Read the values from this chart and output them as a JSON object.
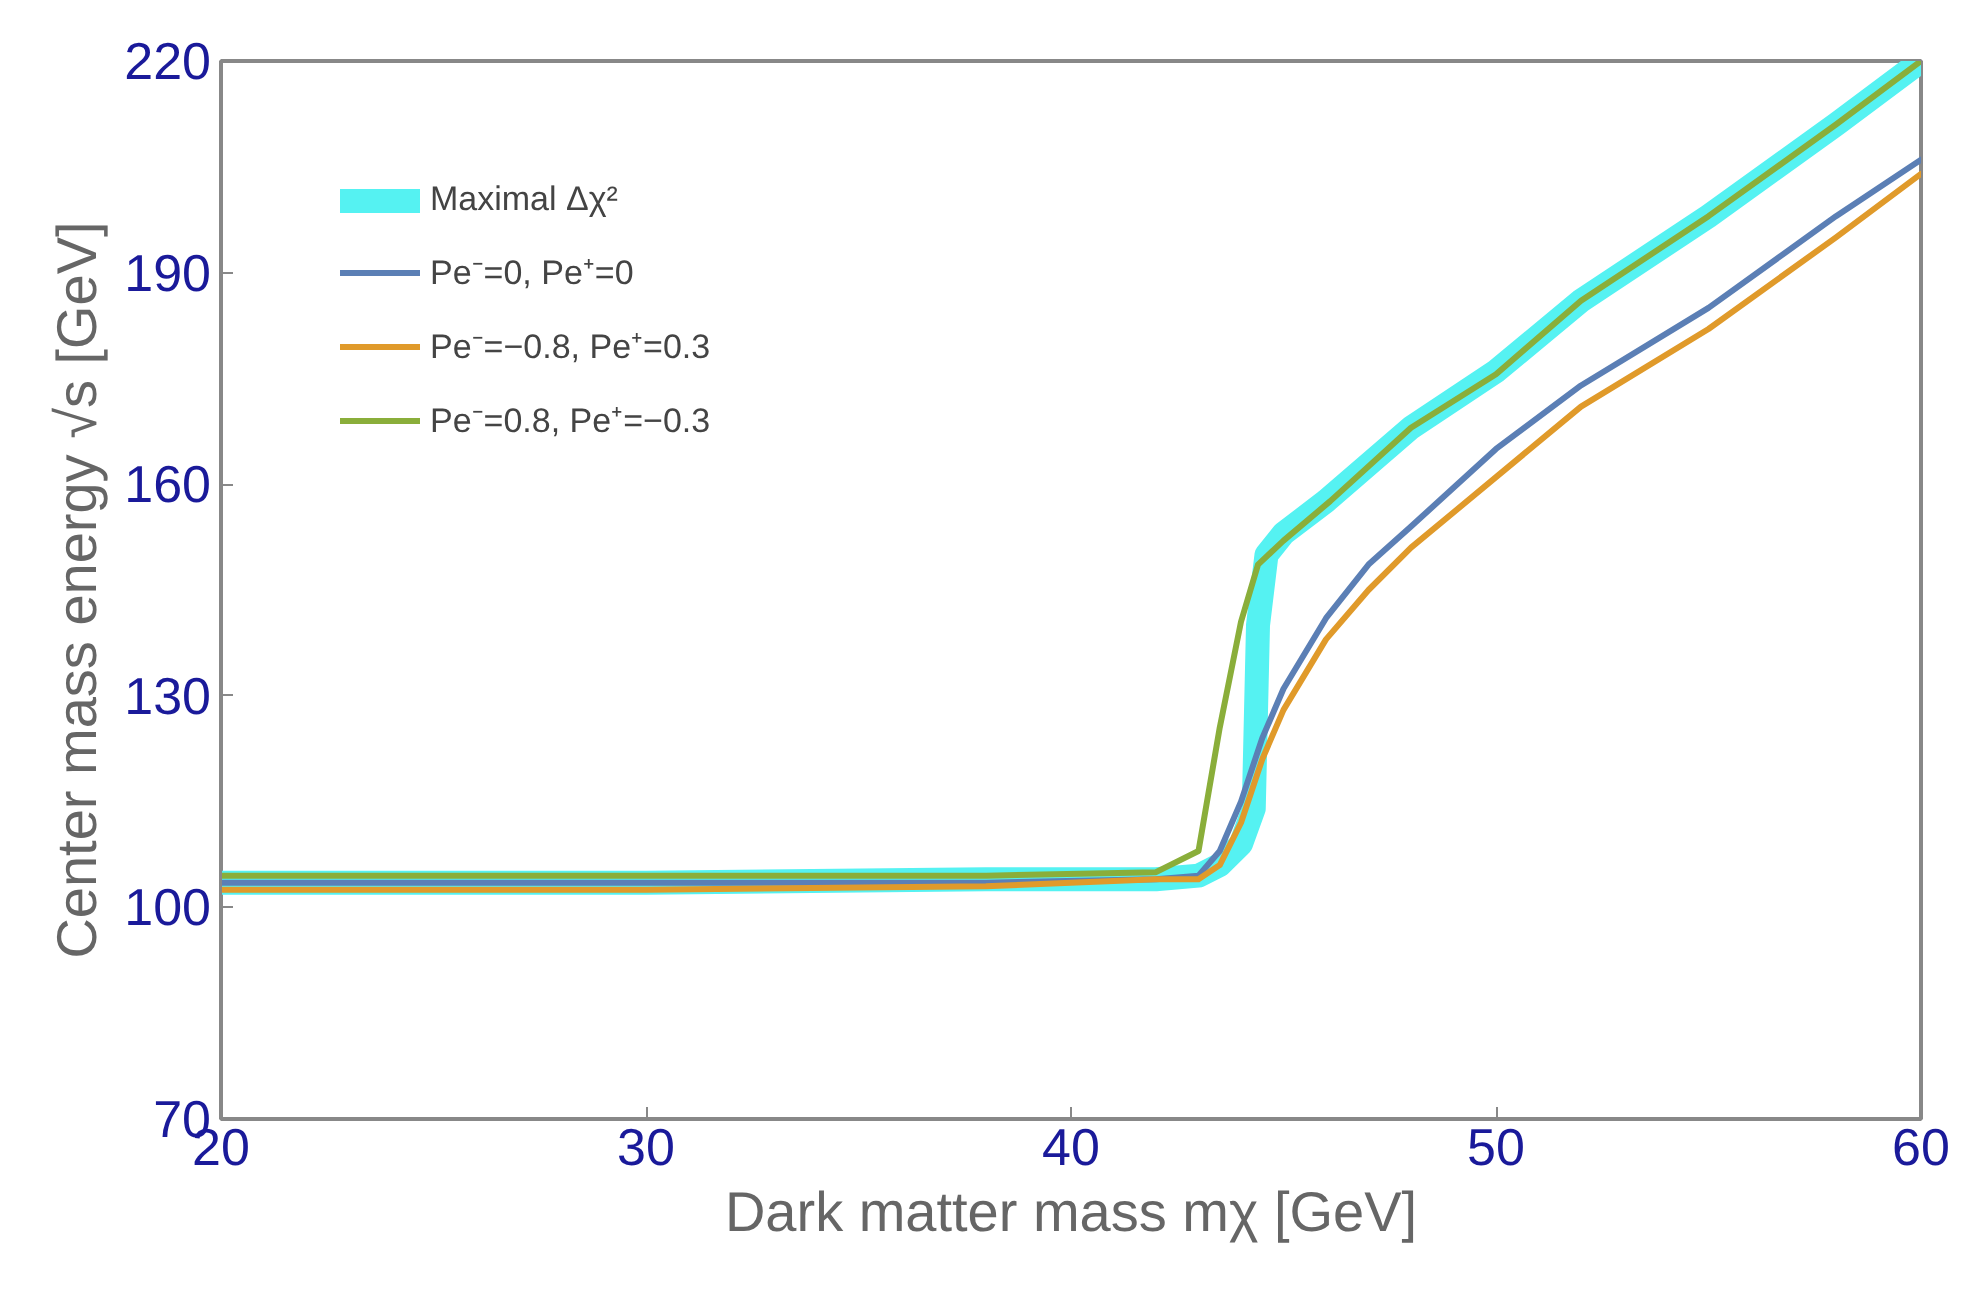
{
  "chart_data": {
    "type": "line",
    "xlabel": "Dark matter mass mχ [GeV]",
    "ylabel": "Center mass energy √s [GeV]",
    "xlim": [
      20,
      60
    ],
    "ylim": [
      70,
      220
    ],
    "xticks": [
      20,
      30,
      40,
      50,
      60
    ],
    "yticks": [
      70,
      100,
      130,
      160,
      190,
      220
    ],
    "grid": false,
    "legend": "top left",
    "line_style": "solid",
    "marker": "none",
    "series": [
      {
        "name": "Maximal Δχ²",
        "color": "#55f2f2",
        "x": [
          20,
          30,
          38,
          42,
          43,
          43.5,
          44,
          44.3,
          44.4,
          44.6,
          45,
          46,
          48,
          50,
          52,
          55,
          58,
          60
        ],
        "values": [
          103.5,
          103.5,
          104,
          104,
          104.5,
          106,
          109,
          114,
          140,
          150,
          153,
          157.6,
          168,
          176,
          186,
          198,
          211,
          220
        ]
      },
      {
        "name": "Pe⁻=0, Pe⁺=0",
        "color": "#5b7fb5",
        "x": [
          20,
          30,
          38,
          42,
          43,
          43.5,
          44,
          44.5,
          45,
          46,
          47,
          48,
          50,
          52,
          55,
          58,
          60
        ],
        "values": [
          103.5,
          103.5,
          103.5,
          104,
          104.5,
          108,
          115,
          124,
          131,
          141,
          148.6,
          154,
          165,
          174,
          185,
          198,
          206
        ]
      },
      {
        "name": "Pe⁻=−0.8, Pe⁺=0.3",
        "color": "#e09a2a",
        "x": [
          20,
          30,
          38,
          42,
          43,
          43.5,
          44,
          44.5,
          45,
          46,
          47,
          48,
          50,
          52,
          55,
          58,
          60
        ],
        "values": [
          102.5,
          102.5,
          103,
          104,
          104,
          106,
          112,
          121,
          128,
          138,
          145,
          151,
          161,
          171,
          182,
          195,
          204
        ]
      },
      {
        "name": "Pe⁻=0.8, Pe⁺=−0.3",
        "color": "#8aae3a",
        "x": [
          20,
          30,
          38,
          42,
          43,
          43.5,
          44,
          44.4,
          45,
          46.1,
          48,
          50,
          52,
          55,
          58,
          60
        ],
        "values": [
          104.5,
          104.5,
          104.5,
          105,
          108,
          125.5,
          140.5,
          148.6,
          152,
          157.6,
          168,
          175.6,
          186,
          198,
          211,
          220
        ]
      }
    ]
  }
}
